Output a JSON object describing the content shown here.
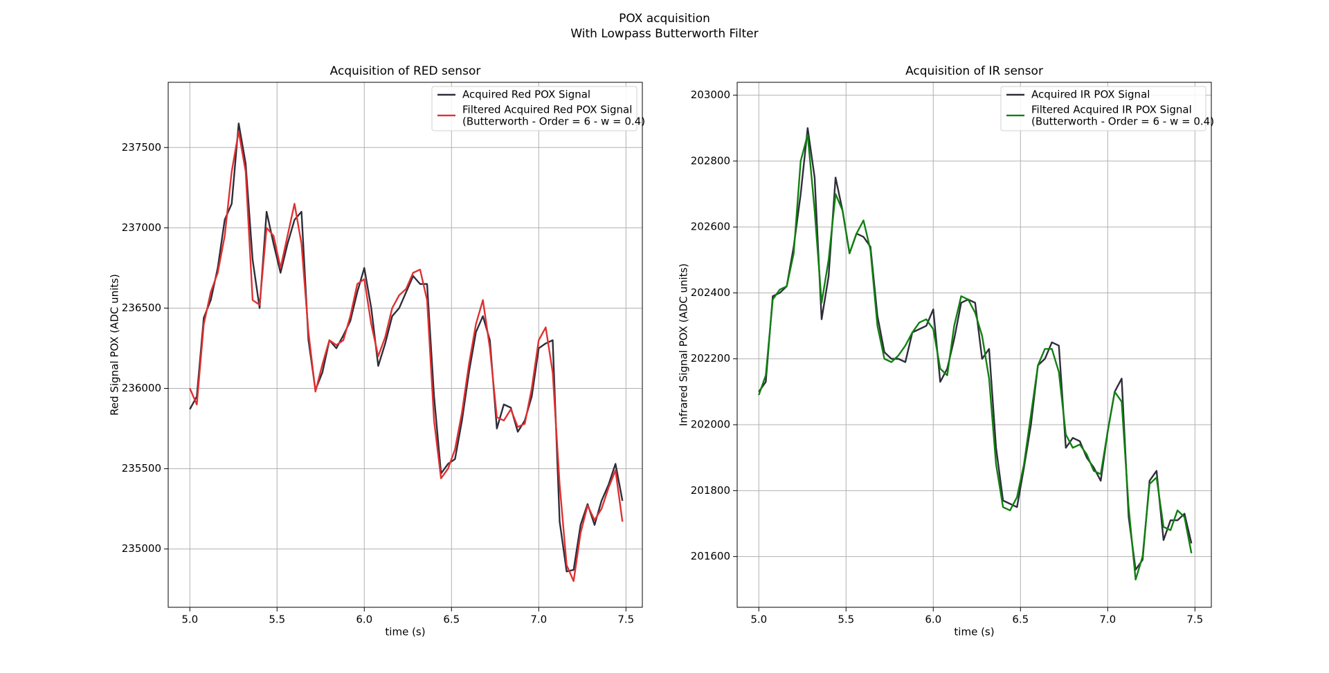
{
  "title": "POX acquisition",
  "subtitle": "With Lowpass Butterworth Filter",
  "chart_data": [
    {
      "type": "line",
      "title": "Acquisition of RED sensor",
      "xlabel": "time (s)",
      "ylabel": "Red Signal POX (ADC units)",
      "xlim": [
        4.876,
        7.594
      ],
      "ylim": [
        234637,
        237906
      ],
      "xticks": [
        {
          "value": 5,
          "label": "5.0"
        },
        5.5,
        {
          "value": 6,
          "label": "6.0"
        },
        6.5,
        {
          "value": 7,
          "label": "7.0"
        },
        7.5
      ],
      "yticks": [
        235000,
        235500,
        236000,
        236500,
        237000,
        237500
      ],
      "grid": true,
      "legend": "upper right",
      "x": [
        5.0,
        5.04,
        5.08,
        5.12,
        5.16,
        5.2,
        5.24,
        5.28,
        5.32,
        5.36,
        5.4,
        5.44,
        5.48,
        5.52,
        5.56,
        5.6,
        5.64,
        5.68,
        5.72,
        5.76,
        5.8,
        5.84,
        5.88,
        5.92,
        5.96,
        6.0,
        6.04,
        6.08,
        6.12,
        6.16,
        6.2,
        6.24,
        6.28,
        6.32,
        6.36,
        6.4,
        6.44,
        6.48,
        6.52,
        6.56,
        6.6,
        6.64,
        6.68,
        6.72,
        6.76,
        6.8,
        6.84,
        6.88,
        6.92,
        6.96,
        7.0,
        7.04,
        7.08,
        7.12,
        7.16,
        7.2,
        7.24,
        7.28,
        7.32,
        7.36,
        7.4,
        7.44,
        7.48
      ],
      "series": [
        {
          "name": "Acquired Red POX Signal",
          "color": "#2d2d3a",
          "values": [
            235870,
            235950,
            236440,
            236550,
            236750,
            237050,
            237150,
            237650,
            237400,
            236800,
            236500,
            237100,
            236900,
            236720,
            236900,
            237050,
            237100,
            236300,
            235990,
            236100,
            236300,
            236250,
            236330,
            236420,
            236600,
            236750,
            236500,
            236140,
            236280,
            236450,
            236500,
            236600,
            236700,
            236650,
            236650,
            235950,
            235470,
            235530,
            235560,
            235800,
            236100,
            236350,
            236450,
            236300,
            235750,
            235900,
            235880,
            235730,
            235800,
            235950,
            236250,
            236280,
            236300,
            235170,
            234860,
            234870,
            235150,
            235280,
            235150,
            235300,
            235400,
            235530,
            235300
          ]
        },
        {
          "name": "Filtered Acquired Red POX Signal\n(Butterworth - Order = 6 - w = 0.4)",
          "color": "#e03030",
          "values": [
            236000,
            235900,
            236400,
            236600,
            236720,
            236950,
            237350,
            237600,
            237350,
            236550,
            236520,
            237000,
            236950,
            236750,
            236950,
            237150,
            236900,
            236350,
            235980,
            236150,
            236300,
            236270,
            236300,
            236450,
            236650,
            236680,
            236400,
            236200,
            236320,
            236500,
            236580,
            236620,
            236720,
            236740,
            236550,
            235800,
            235440,
            235500,
            235620,
            235850,
            236150,
            236400,
            236550,
            236250,
            235820,
            235800,
            235870,
            235760,
            235780,
            236000,
            236300,
            236380,
            236100,
            235400,
            234900,
            234800,
            235100,
            235270,
            235180,
            235250,
            235380,
            235490,
            235170
          ]
        }
      ]
    },
    {
      "type": "line",
      "title": "Acquisition of IR sensor",
      "xlabel": "time (s)",
      "ylabel": "Infrared Signal POX (ADC units)",
      "xlim": [
        4.876,
        7.594
      ],
      "ylim": [
        201446,
        203039
      ],
      "xticks": [
        {
          "value": 5,
          "label": "5.0"
        },
        5.5,
        {
          "value": 6,
          "label": "6.0"
        },
        6.5,
        {
          "value": 7,
          "label": "7.0"
        },
        7.5
      ],
      "yticks": [
        201600,
        201800,
        202000,
        202200,
        202400,
        202600,
        202800,
        203000
      ],
      "grid": true,
      "legend": "upper right",
      "x": [
        5.0,
        5.04,
        5.08,
        5.12,
        5.16,
        5.2,
        5.24,
        5.28,
        5.32,
        5.36,
        5.4,
        5.44,
        5.48,
        5.52,
        5.56,
        5.6,
        5.64,
        5.68,
        5.72,
        5.76,
        5.8,
        5.84,
        5.88,
        5.92,
        5.96,
        6.0,
        6.04,
        6.08,
        6.12,
        6.16,
        6.2,
        6.24,
        6.28,
        6.32,
        6.36,
        6.4,
        6.44,
        6.48,
        6.52,
        6.56,
        6.6,
        6.64,
        6.68,
        6.72,
        6.76,
        6.8,
        6.84,
        6.88,
        6.92,
        6.96,
        7.0,
        7.04,
        7.08,
        7.12,
        7.16,
        7.2,
        7.24,
        7.28,
        7.32,
        7.36,
        7.4,
        7.44,
        7.48
      ],
      "series": [
        {
          "name": "Acquired IR POX Signal",
          "color": "#2d2d3a",
          "values": [
            202100,
            202130,
            202390,
            202400,
            202420,
            202540,
            202700,
            202900,
            202750,
            202320,
            202450,
            202750,
            202650,
            202520,
            202580,
            202570,
            202540,
            202330,
            202220,
            202200,
            202200,
            202190,
            202280,
            202290,
            202300,
            202350,
            202130,
            202170,
            202260,
            202370,
            202380,
            202370,
            202200,
            202230,
            201930,
            201770,
            201760,
            201750,
            201870,
            202000,
            202180,
            202200,
            202250,
            202240,
            201930,
            201960,
            201950,
            201900,
            201870,
            201830,
            201980,
            202100,
            202140,
            201720,
            201560,
            201590,
            201830,
            201860,
            201650,
            201710,
            201710,
            201730,
            201640
          ]
        },
        {
          "name": "Filtered Acquired IR POX Signal\n(Butterworth - Order = 6 - w = 0.4)",
          "color": "#108010",
          "values": [
            202090,
            202150,
            202380,
            202410,
            202420,
            202520,
            202800,
            202880,
            202650,
            202370,
            202500,
            202700,
            202650,
            202520,
            202580,
            202620,
            202530,
            202300,
            202200,
            202190,
            202210,
            202240,
            202280,
            202310,
            202320,
            202290,
            202170,
            202150,
            202300,
            202390,
            202380,
            202340,
            202270,
            202140,
            201880,
            201750,
            201740,
            201780,
            201880,
            202030,
            202180,
            202230,
            202230,
            202160,
            201970,
            201930,
            201940,
            201910,
            201860,
            201850,
            201980,
            202100,
            202070,
            201750,
            201530,
            201600,
            201820,
            201840,
            201690,
            201680,
            201740,
            201720,
            201610
          ]
        }
      ]
    }
  ]
}
